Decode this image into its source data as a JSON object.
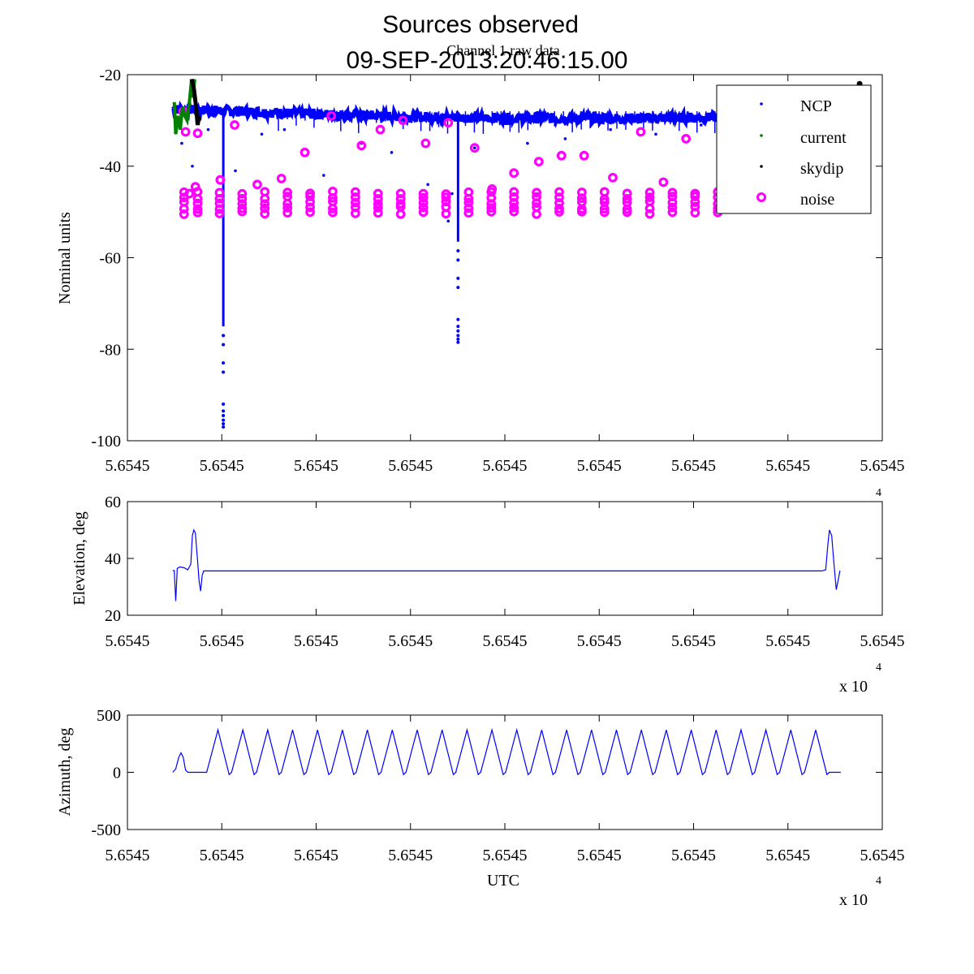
{
  "figure": {
    "title_line1": "Sources observed",
    "title_line2": "09-SEP-2013:20:46:15.00",
    "subtitle": "Channel 1 raw data",
    "exponent_base": "x 10",
    "exponent_power": "4",
    "x_tick_label": "5.6545"
  },
  "colors": {
    "ncp": "#0000ff",
    "current": "#008000",
    "skydip": "#000000",
    "noise": "#ff00ff",
    "axis": "#000000"
  },
  "chart_data": [
    {
      "type": "scatter",
      "title": "Channel 1 raw data",
      "xlabel": "",
      "ylabel": "Nominal units",
      "xlim": [
        0,
        1
      ],
      "ylim": [
        -100,
        -20
      ],
      "yticks": [
        -20,
        -40,
        -60,
        -80,
        -100
      ],
      "yticklabels": [
        "-20",
        "-40",
        "-60",
        "-80",
        "-100"
      ],
      "xticklabels": [
        "5.6545",
        "5.6545",
        "5.6545",
        "5.6545",
        "5.6545",
        "5.6545",
        "5.6545",
        "5.6545",
        "5.6545"
      ],
      "legend_position": "top-right",
      "legend": [
        "NCP",
        "current",
        "skydip",
        "noise"
      ],
      "series": [
        {
          "name": "NCP",
          "baseline": {
            "x_range": [
              0.06,
              0.92
            ],
            "y_start": -27.5,
            "y_end": -29.0,
            "y_mid_dip": -29.5
          },
          "dips": [
            {
              "x": 0.127,
              "min": -97
            },
            {
              "x": 0.438,
              "min": -78.5
            }
          ],
          "scattered": [
            [
              0.072,
              -35
            ],
            [
              0.086,
              -40
            ],
            [
              0.107,
              -32
            ],
            [
              0.143,
              -41
            ],
            [
              0.178,
              -33
            ],
            [
              0.208,
              -32
            ],
            [
              0.26,
              -42
            ],
            [
              0.31,
              -35
            ],
            [
              0.35,
              -37
            ],
            [
              0.398,
              -44
            ],
            [
              0.46,
              -36
            ],
            [
              0.53,
              -35
            ],
            [
              0.58,
              -34
            ],
            [
              0.64,
              -32
            ],
            [
              0.7,
              -33
            ],
            [
              0.76,
              -31
            ],
            [
              0.83,
              -33
            ],
            [
              0.88,
              -37
            ],
            [
              0.425,
              -52
            ],
            [
              0.43,
              -46
            ]
          ]
        },
        {
          "name": "current",
          "points": [
            [
              0.062,
              -26
            ],
            [
              0.064,
              -33
            ],
            [
              0.067,
              -29
            ],
            [
              0.07,
              -32
            ],
            [
              0.073,
              -27
            ],
            [
              0.076,
              -29
            ],
            [
              0.079,
              -30
            ],
            [
              0.082,
              -26
            ],
            [
              0.085,
              -21
            ],
            [
              0.087,
              -25
            ],
            [
              0.089,
              -21
            ]
          ]
        },
        {
          "name": "skydip",
          "points": [
            [
              0.085,
              -21
            ],
            [
              0.088,
              -23
            ],
            [
              0.091,
              -27
            ],
            [
              0.093,
              -31
            ],
            [
              0.095,
              -29
            ],
            [
              0.97,
              -22
            ]
          ]
        },
        {
          "name": "noise",
          "clusters_y": -48,
          "cluster_x": [
            0.075,
            0.093,
            0.122,
            0.152,
            0.182,
            0.212,
            0.242,
            0.272,
            0.302,
            0.332,
            0.362,
            0.392,
            0.422,
            0.452,
            0.482,
            0.512,
            0.542,
            0.572,
            0.602,
            0.632,
            0.662,
            0.692,
            0.722,
            0.752,
            0.782
          ],
          "points": [
            [
              0.074,
              -28
            ],
            [
              0.077,
              -32.5
            ],
            [
              0.093,
              -32.8
            ],
            [
              0.123,
              -43
            ],
            [
              0.142,
              -31
            ],
            [
              0.172,
              -44
            ],
            [
              0.204,
              -42.7
            ],
            [
              0.235,
              -37
            ],
            [
              0.27,
              -29
            ],
            [
              0.31,
              -35.5
            ],
            [
              0.335,
              -32
            ],
            [
              0.365,
              -30
            ],
            [
              0.395,
              -35
            ],
            [
              0.425,
              -30.5
            ],
            [
              0.46,
              -36
            ],
            [
              0.483,
              -45
            ],
            [
              0.512,
              -41.5
            ],
            [
              0.545,
              -39
            ],
            [
              0.575,
              -37.7
            ],
            [
              0.605,
              -37.7
            ],
            [
              0.643,
              -42.5
            ],
            [
              0.68,
              -32.5
            ],
            [
              0.71,
              -43.5
            ],
            [
              0.74,
              -34
            ],
            [
              0.09,
              -44.5
            ],
            [
              0.082,
              -46
            ]
          ]
        }
      ]
    },
    {
      "type": "line",
      "title": "",
      "xlabel": "",
      "ylabel": "Elevation, deg",
      "xlim": [
        0,
        1
      ],
      "ylim": [
        20,
        60
      ],
      "yticks": [
        60,
        40,
        20
      ],
      "yticklabels": [
        "60",
        "40",
        "20"
      ],
      "xticklabels": [
        "5.6545",
        "5.6545",
        "5.6545",
        "5.6545",
        "5.6545",
        "5.6545",
        "5.6545",
        "5.6545",
        "5.6545"
      ],
      "series": [
        {
          "name": "Elevation",
          "points": [
            [
              0.06,
              35.7
            ],
            [
              0.062,
              35.7
            ],
            [
              0.064,
              25
            ],
            [
              0.066,
              36.5
            ],
            [
              0.068,
              36.8
            ],
            [
              0.07,
              37
            ],
            [
              0.075,
              36.7
            ],
            [
              0.08,
              36
            ],
            [
              0.084,
              38
            ],
            [
              0.086,
              48
            ],
            [
              0.088,
              50
            ],
            [
              0.09,
              49
            ],
            [
              0.093,
              39
            ],
            [
              0.095,
              32
            ],
            [
              0.097,
              28.5
            ],
            [
              0.099,
              34
            ],
            [
              0.101,
              35.6
            ],
            [
              0.2,
              35.6
            ],
            [
              0.4,
              35.6
            ],
            [
              0.6,
              35.6
            ],
            [
              0.8,
              35.6
            ],
            [
              0.92,
              35.6
            ],
            [
              0.925,
              36
            ],
            [
              0.928,
              45
            ],
            [
              0.93,
              50
            ],
            [
              0.933,
              48
            ],
            [
              0.936,
              38
            ],
            [
              0.939,
              29
            ],
            [
              0.942,
              33
            ],
            [
              0.944,
              35.7
            ]
          ]
        }
      ]
    },
    {
      "type": "line",
      "title": "",
      "xlabel": "UTC",
      "ylabel": "Azimuth, deg",
      "xlim": [
        0,
        1
      ],
      "ylim": [
        -500,
        500
      ],
      "yticks": [
        500,
        0,
        -500
      ],
      "yticklabels": [
        "500",
        "0",
        "-500"
      ],
      "xticklabels": [
        "5.6545",
        "5.6545",
        "5.6545",
        "5.6545",
        "5.6545",
        "5.6545",
        "5.6545",
        "5.6545",
        "5.6545"
      ],
      "series": [
        {
          "name": "Azimuth",
          "lead_in": [
            [
              0.06,
              0
            ],
            [
              0.064,
              30
            ],
            [
              0.068,
              130
            ],
            [
              0.071,
              170
            ],
            [
              0.074,
              130
            ],
            [
              0.077,
              20
            ],
            [
              0.08,
              0
            ],
            [
              0.105,
              0
            ]
          ],
          "oscillation": {
            "x_start": 0.105,
            "x_end": 0.93,
            "cycles": 25,
            "peak": 370,
            "trough": -20
          },
          "tail": [
            [
              0.93,
              0
            ],
            [
              0.945,
              0
            ]
          ]
        }
      ]
    }
  ]
}
